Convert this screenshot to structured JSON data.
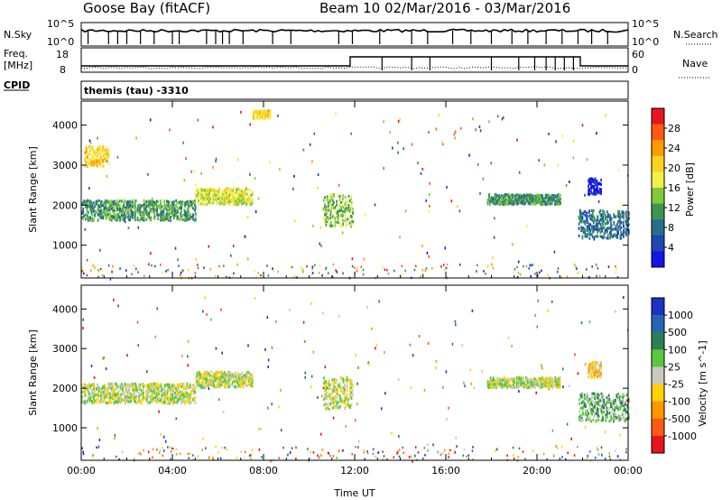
{
  "header": {
    "title_left": "Goose Bay (fitACF)",
    "title_right": "Beam 10  02/Mar/2016 - 03/Mar/2016"
  },
  "strip_labels": {
    "nsky": "N.Sky",
    "nsky_ticks": [
      "10^5",
      "10^0"
    ],
    "nsearch": "N.Search",
    "nsearch_ticks": [
      "10^5",
      "10^0"
    ],
    "freq_line1": "Freq.",
    "freq_line2": "[MHz]",
    "freq_ticks": [
      "18",
      "8"
    ],
    "nave": "Nave",
    "nave_ticks": [
      "60",
      "0"
    ],
    "cpid": "CPID",
    "cpid_value": "themis (tau) -3310"
  },
  "chart_data": [
    {
      "type": "heatmap",
      "title": "",
      "xlabel": "Time UT",
      "ylabel": "Slant Range [km]",
      "x_tick_labels": [
        "00:00",
        "04:00",
        "08:00",
        "12:00",
        "16:00",
        "20:00",
        "00:00"
      ],
      "x_tick_hours": [
        0,
        4,
        8,
        12,
        16,
        20,
        24
      ],
      "y_tick_labels": [
        "1000",
        "2000",
        "3000",
        "4000"
      ],
      "y_tick_values": [
        1000,
        2000,
        3000,
        4000
      ],
      "xlim": [
        0,
        24
      ],
      "ylim": [
        180,
        4600
      ],
      "colorbar_label": "Power [dB]",
      "colorbar_ticks": [
        "28",
        "24",
        "20",
        "16",
        "12",
        "8",
        "4"
      ],
      "colorbar_colors": [
        "#e8141e",
        "#ff5a14",
        "#ff9b00",
        "#ffd21e",
        "#f0f04b",
        "#82c83c",
        "#3c9650",
        "#286e8c",
        "#1e46b4",
        "#1414e6"
      ],
      "echo_regions": [
        {
          "t_start": 0.1,
          "t_end": 1.2,
          "range_start": 3000,
          "range_end": 3500,
          "level": 3
        },
        {
          "t_start": 0.0,
          "t_end": 5.0,
          "range_start": 1650,
          "range_end": 2150,
          "level": 6
        },
        {
          "t_start": 5.0,
          "t_end": 7.5,
          "range_start": 2050,
          "range_end": 2450,
          "level": 4
        },
        {
          "t_start": 7.5,
          "t_end": 8.3,
          "range_start": 4200,
          "range_end": 4400,
          "level": 3
        },
        {
          "t_start": 10.6,
          "t_end": 11.9,
          "range_start": 1500,
          "range_end": 2300,
          "level": 5
        },
        {
          "t_start": 17.8,
          "t_end": 21.0,
          "range_start": 2050,
          "range_end": 2300,
          "level": 6
        },
        {
          "t_start": 21.8,
          "t_end": 24.0,
          "range_start": 1200,
          "range_end": 1900,
          "level": 7
        },
        {
          "t_start": 22.2,
          "t_end": 22.8,
          "range_start": 2300,
          "range_end": 2700,
          "level": 9
        }
      ]
    },
    {
      "type": "heatmap",
      "title": "",
      "xlabel": "Time UT",
      "ylabel": "Slant Range [km]",
      "x_tick_labels": [
        "00:00",
        "04:00",
        "08:00",
        "12:00",
        "16:00",
        "20:00",
        "00:00"
      ],
      "x_tick_hours": [
        0,
        4,
        8,
        12,
        16,
        20,
        24
      ],
      "y_tick_labels": [
        "1000",
        "2000",
        "3000",
        "4000"
      ],
      "y_tick_values": [
        1000,
        2000,
        3000,
        4000
      ],
      "xlim": [
        0,
        24
      ],
      "ylim": [
        180,
        4600
      ],
      "colorbar_label": "Velocity [m s^-1]",
      "colorbar_ticks": [
        "1000",
        "500",
        "100",
        "25",
        "-25",
        "-100",
        "-500",
        "-1000"
      ],
      "colorbar_colors": [
        "#1e32c8",
        "#2864b4",
        "#2d7d55",
        "#5ac83c",
        "#c8c8c0",
        "#ffd200",
        "#ff9600",
        "#ff5a14",
        "#e6141e"
      ],
      "echo_regions": [
        {
          "t_start": 0.0,
          "t_end": 5.0,
          "range_start": 1650,
          "range_end": 2150,
          "level": 4
        },
        {
          "t_start": 5.0,
          "t_end": 7.5,
          "range_start": 2050,
          "range_end": 2450,
          "level": 4
        },
        {
          "t_start": 10.6,
          "t_end": 11.9,
          "range_start": 1500,
          "range_end": 2300,
          "level": 4
        },
        {
          "t_start": 17.8,
          "t_end": 21.0,
          "range_start": 2050,
          "range_end": 2300,
          "level": 4
        },
        {
          "t_start": 21.8,
          "t_end": 24.0,
          "range_start": 1200,
          "range_end": 1900,
          "level": 3
        },
        {
          "t_start": 22.2,
          "t_end": 22.8,
          "range_start": 2300,
          "range_end": 2700,
          "level": 5
        }
      ]
    }
  ]
}
